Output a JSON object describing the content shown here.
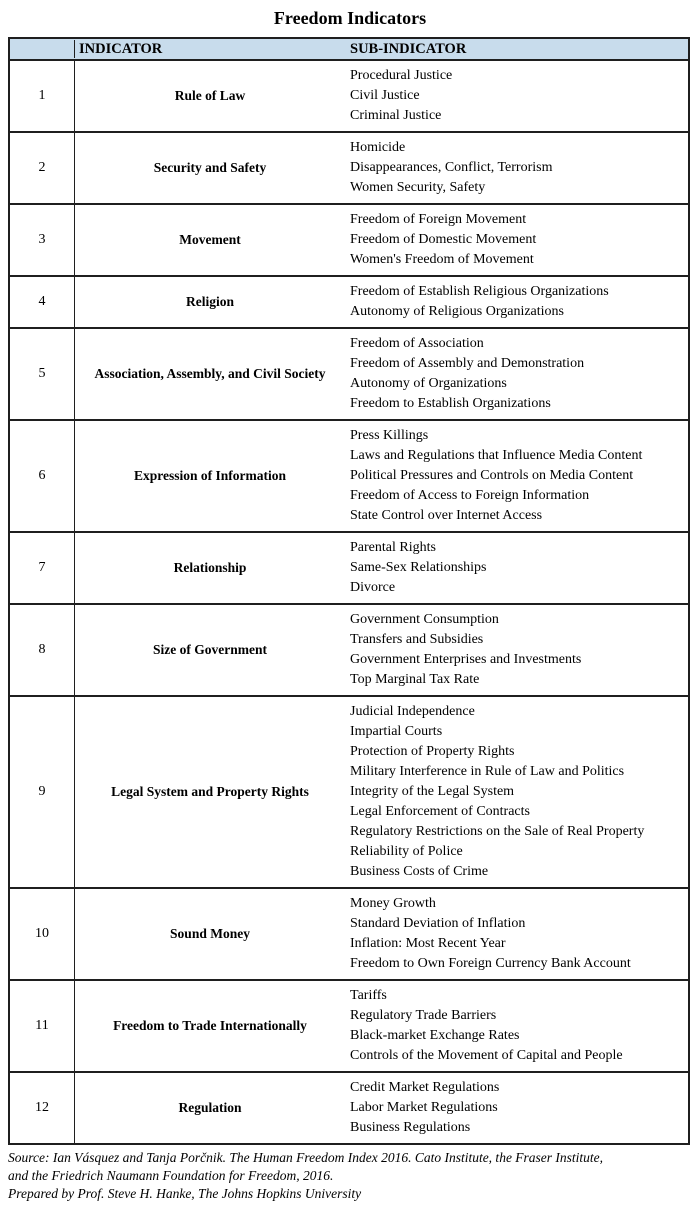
{
  "title": "Freedom Indicators",
  "table": {
    "header_bg": "#c8dcec",
    "border_color": "#1f1f1f",
    "headers": {
      "number": "",
      "indicator": "INDICATOR",
      "sub_indicator": "SUB-INDICATOR"
    },
    "rows": [
      {
        "number": "1",
        "indicator": "Rule of Law",
        "subs": [
          "Procedural Justice",
          "Civil Justice",
          "Criminal Justice"
        ]
      },
      {
        "number": "2",
        "indicator": "Security and Safety",
        "subs": [
          "Homicide",
          "Disappearances, Conflict, Terrorism",
          "Women Security, Safety"
        ]
      },
      {
        "number": "3",
        "indicator": "Movement",
        "subs": [
          "Freedom of Foreign Movement",
          "Freedom of Domestic Movement",
          "Women's Freedom of Movement"
        ]
      },
      {
        "number": "4",
        "indicator": "Religion",
        "subs": [
          "Freedom of Establish Religious Organizations",
          "Autonomy of Religious Organizations"
        ]
      },
      {
        "number": "5",
        "indicator": "Association, Assembly, and Civil Society",
        "subs": [
          "Freedom of Association",
          "Freedom of Assembly and Demonstration",
          "Autonomy of Organizations",
          "Freedom to Establish Organizations"
        ]
      },
      {
        "number": "6",
        "indicator": "Expression of Information",
        "subs": [
          "Press Killings",
          "Laws and Regulations that Influence Media Content",
          "Political Pressures and Controls on Media Content",
          "Freedom of Access to Foreign Information",
          "State Control over Internet Access"
        ]
      },
      {
        "number": "7",
        "indicator": "Relationship",
        "subs": [
          "Parental Rights",
          "Same-Sex Relationships",
          "Divorce"
        ]
      },
      {
        "number": "8",
        "indicator": "Size of Government",
        "subs": [
          "Government Consumption",
          "Transfers and Subsidies",
          "Government Enterprises and Investments",
          "Top Marginal Tax Rate"
        ]
      },
      {
        "number": "9",
        "indicator": "Legal System and Property Rights",
        "subs": [
          "Judicial Independence",
          "Impartial Courts",
          "Protection of Property Rights",
          "Military Interference in Rule of Law and Politics",
          "Integrity of the Legal System",
          "Legal Enforcement of Contracts",
          "Regulatory Restrictions on the Sale of Real Property",
          "Reliability of Police",
          "Business Costs of Crime"
        ]
      },
      {
        "number": "10",
        "indicator": "Sound Money",
        "subs": [
          "Money Growth",
          "Standard Deviation of Inflation",
          "Inflation: Most Recent Year",
          "Freedom to Own Foreign Currency Bank Account"
        ]
      },
      {
        "number": "11",
        "indicator": "Freedom to Trade Internationally",
        "subs": [
          "Tariffs",
          "Regulatory Trade Barriers",
          "Black-market Exchange Rates",
          "Controls of the Movement of Capital and People"
        ]
      },
      {
        "number": "12",
        "indicator": "Regulation",
        "subs": [
          "Credit Market Regulations",
          "Labor Market Regulations",
          "Business Regulations"
        ]
      }
    ]
  },
  "footer": {
    "source_lines": [
      "Source: Ian Vásquez and Tanja Porčnik. The Human Freedom Index 2016. Cato Institute, the Fraser Institute,",
      "and the Friedrich Naumann Foundation for Freedom, 2016."
    ],
    "prepared": "Prepared by Prof. Steve H. Hanke, The Johns Hopkins University"
  }
}
